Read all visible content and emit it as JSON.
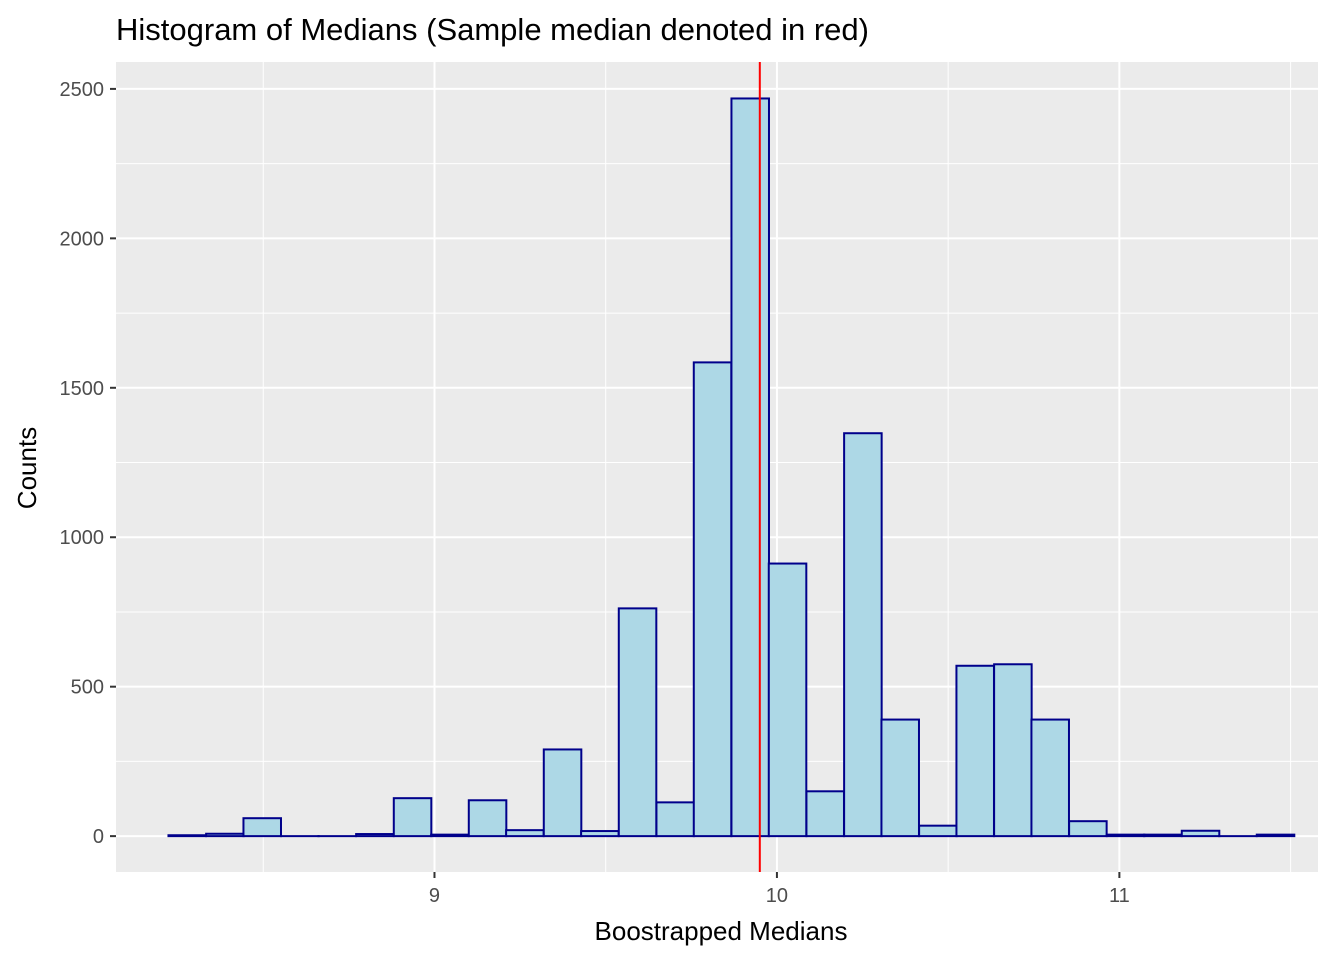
{
  "chart_data": {
    "type": "bar",
    "title": "Histogram of Medians (Sample median denoted in red)",
    "xlabel": "Boostrapped Medians",
    "ylabel": "Counts",
    "xlim": [
      8.07,
      11.58
    ],
    "ylim": [
      -120,
      2590
    ],
    "x_ticks": [
      9,
      10,
      11
    ],
    "x_tick_labels": [
      "9",
      "10",
      "11"
    ],
    "y_ticks": [
      0,
      500,
      1000,
      1500,
      2000,
      2500
    ],
    "y_tick_labels": [
      "0",
      "500",
      "1000",
      "1500",
      "2000",
      "2500"
    ],
    "bin_width": 0.1096,
    "bin_centers": [
      8.278,
      8.388,
      8.497,
      8.607,
      8.716,
      8.826,
      8.936,
      9.045,
      9.155,
      9.264,
      9.374,
      9.483,
      9.593,
      9.703,
      9.812,
      9.922,
      10.031,
      10.141,
      10.251,
      10.36,
      10.47,
      10.579,
      10.689,
      10.798,
      10.908,
      11.018,
      11.127,
      11.237,
      11.346,
      11.456
    ],
    "values": [
      3,
      8,
      60,
      0,
      0,
      7,
      127,
      5,
      120,
      20,
      290,
      17,
      762,
      113,
      1585,
      2468,
      912,
      150,
      1348,
      390,
      35,
      570,
      575,
      390,
      50,
      5,
      5,
      18,
      0,
      5
    ],
    "sample_median": 9.95,
    "grid": true,
    "colors": {
      "panel_background": "#EBEBEB",
      "grid_line": "#FFFFFF",
      "bar_fill": "#ADD8E6",
      "bar_outline": "#00008B",
      "median_line": "#FF0000"
    }
  }
}
